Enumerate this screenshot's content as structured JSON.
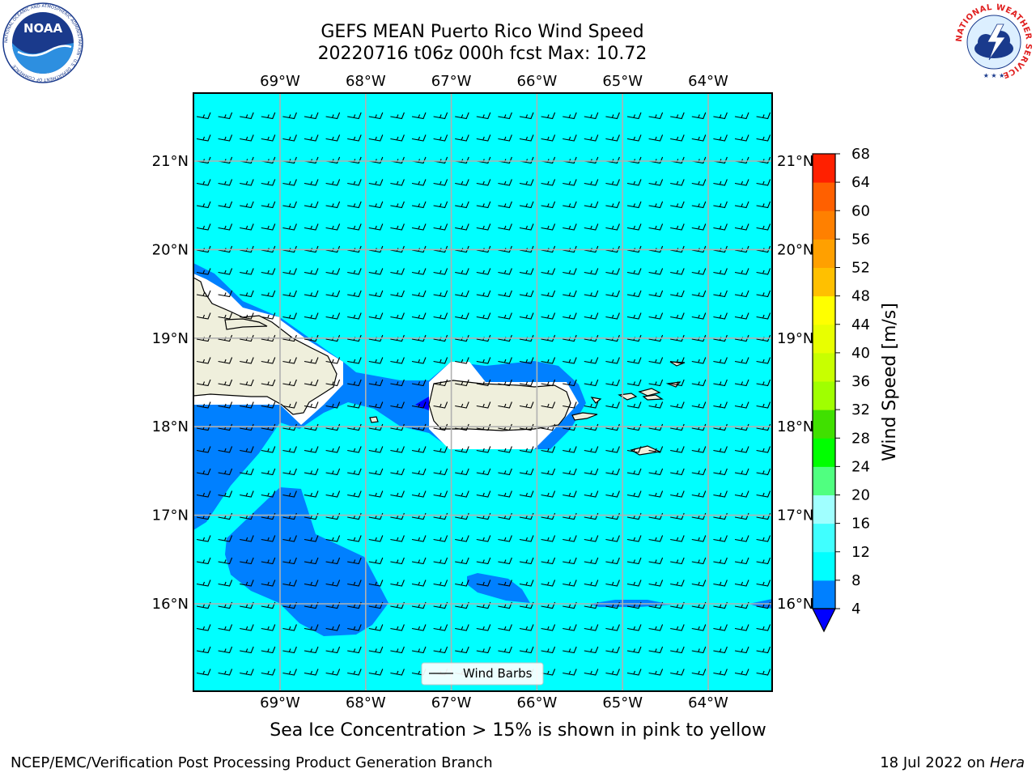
{
  "title": {
    "line1": "GEFS MEAN Puerto Rico Wind Speed",
    "line2": "20220716 t06z 000h fcst   Max: 10.72"
  },
  "logos": {
    "noaa": "NOAA",
    "noaa_ring": "NATIONAL OCEANIC AND ATMOSPHERIC ADMINISTRATION · U.S. DEPARTMENT OF COMMERCE",
    "nws_ring": "NATIONAL WEATHER SERVICE"
  },
  "map": {
    "lon_labels": [
      "69°W",
      "68°W",
      "67°W",
      "66°W",
      "65°W",
      "64°W"
    ],
    "lat_labels": [
      "21°N",
      "20°N",
      "19°N",
      "18°N",
      "17°N",
      "16°N"
    ],
    "lon_values": [
      -69,
      -68,
      -67,
      -66,
      -65,
      -64
    ],
    "lat_values": [
      21,
      20,
      19,
      18,
      17,
      16
    ],
    "extent": {
      "lon": [
        -70,
        -63.25
      ],
      "lat": [
        15,
        21.75
      ]
    },
    "colors": {
      "ocean_bg": "#00ffff",
      "low_wind": "#0080ff",
      "very_low": "#0000ff",
      "land": "#efefdc",
      "grid": "#b0b0b0"
    }
  },
  "legend": {
    "label": "Wind Barbs"
  },
  "colorbar": {
    "label": "Wind Speed [m/s]",
    "ticks": [
      "4",
      "8",
      "12",
      "16",
      "20",
      "24",
      "28",
      "32",
      "36",
      "40",
      "44",
      "48",
      "52",
      "56",
      "60",
      "64",
      "68"
    ],
    "colors": [
      "#0080ff",
      "#00ffff",
      "#40ffff",
      "#a0ffff",
      "#50ff80",
      "#00ff00",
      "#40e000",
      "#a0ff00",
      "#c8ff00",
      "#e8ff00",
      "#ffff00",
      "#ffc000",
      "#ffa000",
      "#ff8000",
      "#ff6000",
      "#ff2000"
    ],
    "under_color": "#0000ff"
  },
  "caption": "Sea Ice Concentration > 15% is shown in pink to yellow",
  "footer": {
    "left": "NCEP/EMC/Verification Post Processing Product Generation Branch",
    "right_prefix": "18 Jul 2022 on",
    "right_machine": "Hera"
  }
}
